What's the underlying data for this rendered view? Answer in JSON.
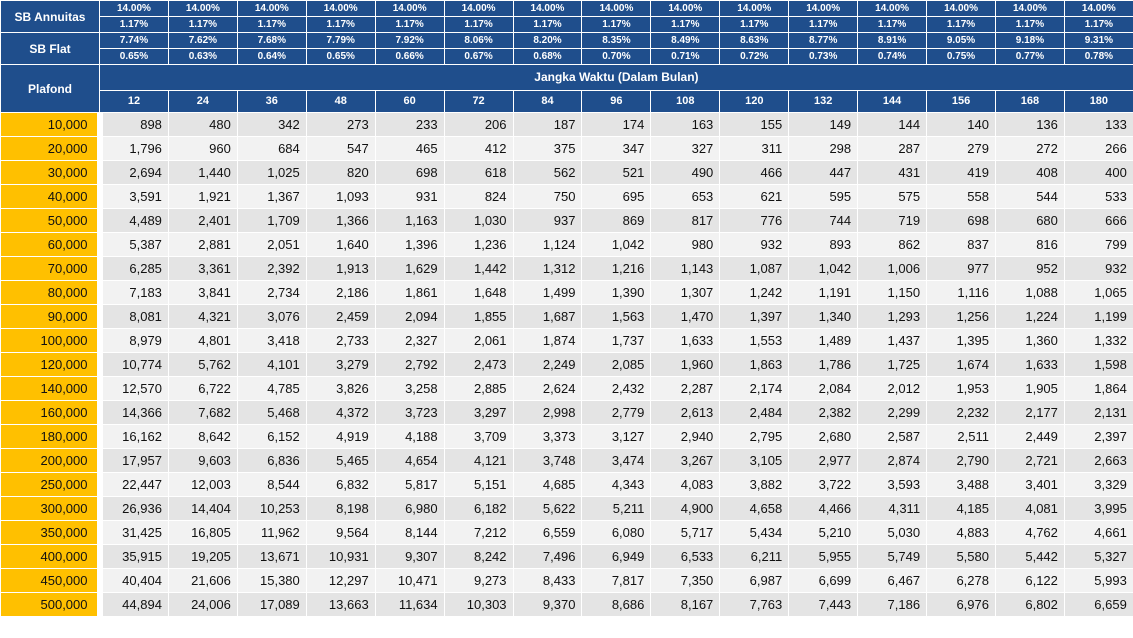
{
  "labels": {
    "sb_annuitas": "SB Annuitas",
    "sb_flat": "SB Flat",
    "plafond": "Plafond",
    "jangka_waktu": "Jangka Waktu (Dalam Bulan)"
  },
  "colors": {
    "header_blue": "#1f4e8c",
    "plafond_yellow": "#ffc000"
  },
  "sb_annuitas_row1": [
    "14.00%",
    "14.00%",
    "14.00%",
    "14.00%",
    "14.00%",
    "14.00%",
    "14.00%",
    "14.00%",
    "14.00%",
    "14.00%",
    "14.00%",
    "14.00%",
    "14.00%",
    "14.00%",
    "14.00%"
  ],
  "sb_annuitas_row2": [
    "1.17%",
    "1.17%",
    "1.17%",
    "1.17%",
    "1.17%",
    "1.17%",
    "1.17%",
    "1.17%",
    "1.17%",
    "1.17%",
    "1.17%",
    "1.17%",
    "1.17%",
    "1.17%",
    "1.17%"
  ],
  "sb_flat_row1": [
    "7.74%",
    "7.62%",
    "7.68%",
    "7.79%",
    "7.92%",
    "8.06%",
    "8.20%",
    "8.35%",
    "8.49%",
    "8.63%",
    "8.77%",
    "8.91%",
    "9.05%",
    "9.18%",
    "9.31%"
  ],
  "sb_flat_row2": [
    "0.65%",
    "0.63%",
    "0.64%",
    "0.65%",
    "0.66%",
    "0.67%",
    "0.68%",
    "0.70%",
    "0.71%",
    "0.72%",
    "0.73%",
    "0.74%",
    "0.75%",
    "0.77%",
    "0.78%"
  ],
  "terms": [
    "12",
    "24",
    "36",
    "48",
    "60",
    "72",
    "84",
    "96",
    "108",
    "120",
    "132",
    "144",
    "156",
    "168",
    "180"
  ],
  "rows": [
    {
      "plafond": "10,000",
      "values": [
        "898",
        "480",
        "342",
        "273",
        "233",
        "206",
        "187",
        "174",
        "163",
        "155",
        "149",
        "144",
        "140",
        "136",
        "133"
      ]
    },
    {
      "plafond": "20,000",
      "values": [
        "1,796",
        "960",
        "684",
        "547",
        "465",
        "412",
        "375",
        "347",
        "327",
        "311",
        "298",
        "287",
        "279",
        "272",
        "266"
      ]
    },
    {
      "plafond": "30,000",
      "values": [
        "2,694",
        "1,440",
        "1,025",
        "820",
        "698",
        "618",
        "562",
        "521",
        "490",
        "466",
        "447",
        "431",
        "419",
        "408",
        "400"
      ]
    },
    {
      "plafond": "40,000",
      "values": [
        "3,591",
        "1,921",
        "1,367",
        "1,093",
        "931",
        "824",
        "750",
        "695",
        "653",
        "621",
        "595",
        "575",
        "558",
        "544",
        "533"
      ]
    },
    {
      "plafond": "50,000",
      "values": [
        "4,489",
        "2,401",
        "1,709",
        "1,366",
        "1,163",
        "1,030",
        "937",
        "869",
        "817",
        "776",
        "744",
        "719",
        "698",
        "680",
        "666"
      ]
    },
    {
      "plafond": "60,000",
      "values": [
        "5,387",
        "2,881",
        "2,051",
        "1,640",
        "1,396",
        "1,236",
        "1,124",
        "1,042",
        "980",
        "932",
        "893",
        "862",
        "837",
        "816",
        "799"
      ]
    },
    {
      "plafond": "70,000",
      "values": [
        "6,285",
        "3,361",
        "2,392",
        "1,913",
        "1,629",
        "1,442",
        "1,312",
        "1,216",
        "1,143",
        "1,087",
        "1,042",
        "1,006",
        "977",
        "952",
        "932"
      ]
    },
    {
      "plafond": "80,000",
      "values": [
        "7,183",
        "3,841",
        "2,734",
        "2,186",
        "1,861",
        "1,648",
        "1,499",
        "1,390",
        "1,307",
        "1,242",
        "1,191",
        "1,150",
        "1,116",
        "1,088",
        "1,065"
      ]
    },
    {
      "plafond": "90,000",
      "values": [
        "8,081",
        "4,321",
        "3,076",
        "2,459",
        "2,094",
        "1,855",
        "1,687",
        "1,563",
        "1,470",
        "1,397",
        "1,340",
        "1,293",
        "1,256",
        "1,224",
        "1,199"
      ]
    },
    {
      "plafond": "100,000",
      "values": [
        "8,979",
        "4,801",
        "3,418",
        "2,733",
        "2,327",
        "2,061",
        "1,874",
        "1,737",
        "1,633",
        "1,553",
        "1,489",
        "1,437",
        "1,395",
        "1,360",
        "1,332"
      ]
    },
    {
      "plafond": "120,000",
      "values": [
        "10,774",
        "5,762",
        "4,101",
        "3,279",
        "2,792",
        "2,473",
        "2,249",
        "2,085",
        "1,960",
        "1,863",
        "1,786",
        "1,725",
        "1,674",
        "1,633",
        "1,598"
      ]
    },
    {
      "plafond": "140,000",
      "values": [
        "12,570",
        "6,722",
        "4,785",
        "3,826",
        "3,258",
        "2,885",
        "2,624",
        "2,432",
        "2,287",
        "2,174",
        "2,084",
        "2,012",
        "1,953",
        "1,905",
        "1,864"
      ]
    },
    {
      "plafond": "160,000",
      "values": [
        "14,366",
        "7,682",
        "5,468",
        "4,372",
        "3,723",
        "3,297",
        "2,998",
        "2,779",
        "2,613",
        "2,484",
        "2,382",
        "2,299",
        "2,232",
        "2,177",
        "2,131"
      ]
    },
    {
      "plafond": "180,000",
      "values": [
        "16,162",
        "8,642",
        "6,152",
        "4,919",
        "4,188",
        "3,709",
        "3,373",
        "3,127",
        "2,940",
        "2,795",
        "2,680",
        "2,587",
        "2,511",
        "2,449",
        "2,397"
      ]
    },
    {
      "plafond": "200,000",
      "values": [
        "17,957",
        "9,603",
        "6,836",
        "5,465",
        "4,654",
        "4,121",
        "3,748",
        "3,474",
        "3,267",
        "3,105",
        "2,977",
        "2,874",
        "2,790",
        "2,721",
        "2,663"
      ]
    },
    {
      "plafond": "250,000",
      "values": [
        "22,447",
        "12,003",
        "8,544",
        "6,832",
        "5,817",
        "5,151",
        "4,685",
        "4,343",
        "4,083",
        "3,882",
        "3,722",
        "3,593",
        "3,488",
        "3,401",
        "3,329"
      ]
    },
    {
      "plafond": "300,000",
      "values": [
        "26,936",
        "14,404",
        "10,253",
        "8,198",
        "6,980",
        "6,182",
        "5,622",
        "5,211",
        "4,900",
        "4,658",
        "4,466",
        "4,311",
        "4,185",
        "4,081",
        "3,995"
      ]
    },
    {
      "plafond": "350,000",
      "values": [
        "31,425",
        "16,805",
        "11,962",
        "9,564",
        "8,144",
        "7,212",
        "6,559",
        "6,080",
        "5,717",
        "5,434",
        "5,210",
        "5,030",
        "4,883",
        "4,762",
        "4,661"
      ]
    },
    {
      "plafond": "400,000",
      "values": [
        "35,915",
        "19,205",
        "13,671",
        "10,931",
        "9,307",
        "8,242",
        "7,496",
        "6,949",
        "6,533",
        "6,211",
        "5,955",
        "5,749",
        "5,580",
        "5,442",
        "5,327"
      ]
    },
    {
      "plafond": "450,000",
      "values": [
        "40,404",
        "21,606",
        "15,380",
        "12,297",
        "10,471",
        "9,273",
        "8,433",
        "7,817",
        "7,350",
        "6,987",
        "6,699",
        "6,467",
        "6,278",
        "6,122",
        "5,993"
      ]
    },
    {
      "plafond": "500,000",
      "values": [
        "44,894",
        "24,006",
        "17,089",
        "13,663",
        "11,634",
        "10,303",
        "9,370",
        "8,686",
        "8,167",
        "7,763",
        "7,443",
        "7,186",
        "6,976",
        "6,802",
        "6,659"
      ]
    }
  ]
}
